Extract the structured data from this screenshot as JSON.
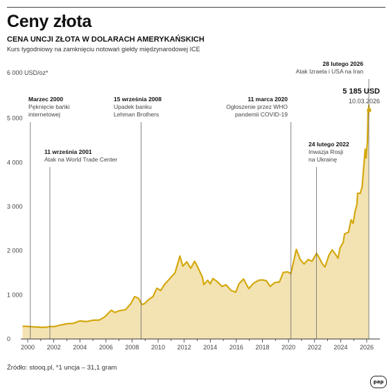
{
  "header": {
    "title": "Ceny złota",
    "subtitle": "CENA UNCJI ZŁOTA W DOLARACH AMERYKAŃSKICH",
    "description": "Kurs tygodniowy na zamknięciu notowań giełdy międzynarodowej ICE"
  },
  "footer": {
    "source": "Źródło: stooq.pl, *1 uncja – 31,1 gram",
    "logo": "pap"
  },
  "chart_data": {
    "type": "area",
    "title": "Ceny złota",
    "ylabel": "6 000 USD/oz*",
    "xlim": [
      1999.4,
      2026.9
    ],
    "ylim": [
      0,
      6000
    ],
    "y_ticks": [
      {
        "value": 0,
        "label": "0"
      },
      {
        "value": 1000,
        "label": "1 000"
      },
      {
        "value": 2000,
        "label": "2 000"
      },
      {
        "value": 3000,
        "label": "3 000"
      },
      {
        "value": 4000,
        "label": "4 000"
      },
      {
        "value": 5000,
        "label": "5 000"
      }
    ],
    "x_ticks": [
      {
        "value": 2000,
        "label": "2000"
      },
      {
        "value": 2002,
        "label": "2002"
      },
      {
        "value": 2004,
        "label": "2004"
      },
      {
        "value": 2006,
        "label": "2006"
      },
      {
        "value": 2008,
        "label": "2008"
      },
      {
        "value": 2010,
        "label": "2010"
      },
      {
        "value": 2012,
        "label": "2012"
      },
      {
        "value": 2014,
        "label": "2014"
      },
      {
        "value": 2016,
        "label": "2016"
      },
      {
        "value": 2018,
        "label": "2018"
      },
      {
        "value": 2020,
        "label": "2020"
      },
      {
        "value": 2022,
        "label": "2022"
      },
      {
        "value": 2024,
        "label": "2024"
      },
      {
        "value": 2026,
        "label": "2026"
      }
    ],
    "grid": false,
    "colors": {
      "line": "#d4a80f",
      "fill": "#f3e3b3",
      "event_line": "#666666"
    },
    "series": [
      {
        "points": [
          [
            1999.6,
            290
          ],
          [
            2000.0,
            285
          ],
          [
            2000.5,
            275
          ],
          [
            2001.0,
            265
          ],
          [
            2001.4,
            265
          ],
          [
            2001.7,
            285
          ],
          [
            2002.0,
            280
          ],
          [
            2002.5,
            315
          ],
          [
            2003.0,
            345
          ],
          [
            2003.5,
            355
          ],
          [
            2004.0,
            410
          ],
          [
            2004.5,
            395
          ],
          [
            2005.0,
            425
          ],
          [
            2005.5,
            430
          ],
          [
            2005.9,
            500
          ],
          [
            2006.4,
            650
          ],
          [
            2006.7,
            600
          ],
          [
            2007.0,
            640
          ],
          [
            2007.5,
            665
          ],
          [
            2007.9,
            800
          ],
          [
            2008.2,
            960
          ],
          [
            2008.5,
            920
          ],
          [
            2008.75,
            780
          ],
          [
            2008.95,
            800
          ],
          [
            2009.3,
            900
          ],
          [
            2009.6,
            960
          ],
          [
            2009.9,
            1150
          ],
          [
            2010.2,
            1100
          ],
          [
            2010.5,
            1240
          ],
          [
            2010.9,
            1370
          ],
          [
            2011.3,
            1500
          ],
          [
            2011.67,
            1880
          ],
          [
            2011.9,
            1650
          ],
          [
            2012.2,
            1750
          ],
          [
            2012.5,
            1600
          ],
          [
            2012.8,
            1760
          ],
          [
            2013.0,
            1650
          ],
          [
            2013.4,
            1400
          ],
          [
            2013.5,
            1230
          ],
          [
            2013.8,
            1330
          ],
          [
            2014.0,
            1250
          ],
          [
            2014.2,
            1370
          ],
          [
            2014.5,
            1310
          ],
          [
            2014.9,
            1190
          ],
          [
            2015.2,
            1230
          ],
          [
            2015.6,
            1100
          ],
          [
            2015.95,
            1060
          ],
          [
            2016.2,
            1250
          ],
          [
            2016.55,
            1360
          ],
          [
            2016.95,
            1140
          ],
          [
            2017.3,
            1260
          ],
          [
            2017.7,
            1330
          ],
          [
            2018.0,
            1340
          ],
          [
            2018.3,
            1320
          ],
          [
            2018.6,
            1190
          ],
          [
            2018.95,
            1280
          ],
          [
            2019.3,
            1290
          ],
          [
            2019.6,
            1510
          ],
          [
            2019.95,
            1520
          ],
          [
            2020.18,
            1480
          ],
          [
            2020.35,
            1700
          ],
          [
            2020.6,
            2030
          ],
          [
            2020.9,
            1800
          ],
          [
            2021.2,
            1700
          ],
          [
            2021.5,
            1800
          ],
          [
            2021.8,
            1760
          ],
          [
            2022.15,
            1940
          ],
          [
            2022.3,
            1870
          ],
          [
            2022.6,
            1700
          ],
          [
            2022.8,
            1630
          ],
          [
            2023.1,
            1900
          ],
          [
            2023.35,
            2020
          ],
          [
            2023.6,
            1920
          ],
          [
            2023.8,
            1830
          ],
          [
            2023.95,
            2060
          ],
          [
            2024.2,
            2190
          ],
          [
            2024.3,
            2380
          ],
          [
            2024.6,
            2420
          ],
          [
            2024.8,
            2700
          ],
          [
            2024.95,
            2620
          ],
          [
            2025.1,
            2880
          ],
          [
            2025.25,
            3050
          ],
          [
            2025.3,
            3300
          ],
          [
            2025.5,
            3300
          ],
          [
            2025.65,
            3450
          ],
          [
            2025.8,
            4000
          ],
          [
            2025.88,
            4300
          ],
          [
            2025.95,
            4100
          ],
          [
            2026.0,
            4300
          ],
          [
            2026.05,
            4450
          ],
          [
            2026.08,
            4800
          ],
          [
            2026.1,
            5200
          ],
          [
            2026.12,
            4950
          ],
          [
            2026.16,
            5300
          ],
          [
            2026.18,
            5185
          ]
        ]
      }
    ],
    "last_point": {
      "x": 2026.18,
      "y": 5185,
      "value_label": "5 185 USD",
      "date_label": "10.03.2026"
    },
    "events": [
      {
        "id": "marzec-2000",
        "x": 2000.2,
        "date": "Marzec 2000",
        "text": [
          "Pęknięcie bańki",
          "internetowej"
        ],
        "label_y": 146,
        "anchor": "start",
        "label_x": 41
      },
      {
        "id": "wrzesien-2001",
        "x": 2001.7,
        "date": "11 września 2001",
        "text": [
          "Atak na World Trade Center"
        ],
        "label_y": 222,
        "anchor": "start",
        "label_x": 64
      },
      {
        "id": "wrzesien-2008",
        "x": 2008.7,
        "date": "15 września 2008",
        "text": [
          "Upadek banku",
          "Lehman Brothers"
        ],
        "label_y": 146,
        "anchor": "start",
        "label_x": 164
      },
      {
        "id": "marzec-2020",
        "x": 2020.19,
        "date": "11 marca 2020",
        "text": [
          "Ogłoszenie przez WHO",
          "pandemii COVID-19"
        ],
        "label_y": 146,
        "anchor": "end",
        "label_x": 415
      },
      {
        "id": "luty-2022",
        "x": 2022.15,
        "date": "24 lutego 2022",
        "text": [
          "Inwazja Rosji",
          "na Ukrainę"
        ],
        "label_y": 211,
        "anchor": "start",
        "label_x": 445
      },
      {
        "id": "luty-2026",
        "x": 2026.16,
        "date": "28 lutego 2026",
        "text": [
          "Atak Izraela i USA na Iran"
        ],
        "label_y": 95,
        "anchor": "end",
        "label_x": 524
      }
    ]
  }
}
